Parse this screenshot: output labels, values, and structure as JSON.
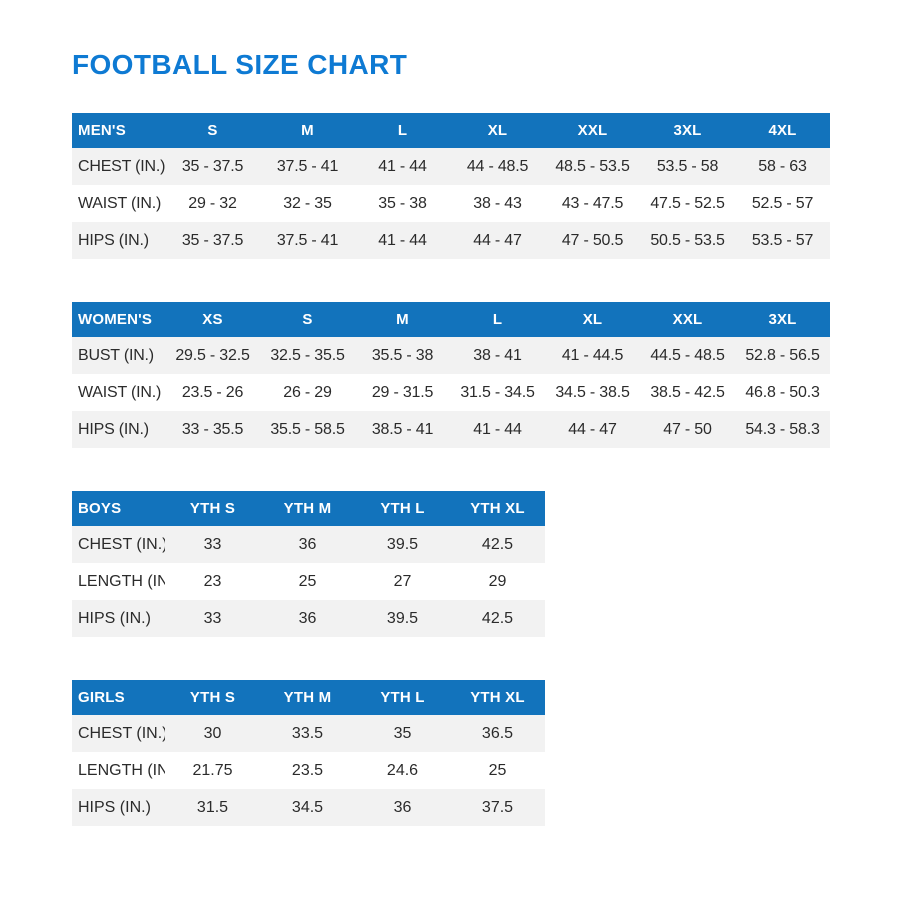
{
  "page": {
    "title": "FOOTBALL SIZE CHART"
  },
  "colors": {
    "title_blue": "#0e7ad3",
    "header_blue": "#1273bc",
    "row_stripe_gray": "#f2f2f2",
    "text": "#2b2b2b"
  },
  "tables": [
    {
      "name": "mens",
      "header": [
        "MEN'S",
        "S",
        "M",
        "L",
        "XL",
        "XXL",
        "3XL",
        "4XL"
      ],
      "rows": [
        [
          "CHEST (IN.)",
          "35 - 37.5",
          "37.5 - 41",
          "41 - 44",
          "44 - 48.5",
          "48.5 - 53.5",
          "53.5 - 58",
          "58 - 63"
        ],
        [
          "WAIST (IN.)",
          "29 - 32",
          "32 - 35",
          "35 - 38",
          "38 - 43",
          "43 - 47.5",
          "47.5 - 52.5",
          "52.5 - 57"
        ],
        [
          "HIPS (IN.)",
          "35 - 37.5",
          "37.5 - 41",
          "41 - 44",
          "44 - 47",
          "47 - 50.5",
          "50.5 - 53.5",
          "53.5 - 57"
        ]
      ]
    },
    {
      "name": "womens",
      "header": [
        "WOMEN'S",
        "XS",
        "S",
        "M",
        "L",
        "XL",
        "XXL",
        "3XL"
      ],
      "rows": [
        [
          "BUST (IN.)",
          "29.5 - 32.5",
          "32.5 - 35.5",
          "35.5 - 38",
          "38 - 41",
          "41 - 44.5",
          "44.5 - 48.5",
          "52.8 - 56.5"
        ],
        [
          "WAIST (IN.)",
          "23.5 - 26",
          "26 - 29",
          "29 - 31.5",
          "31.5 - 34.5",
          "34.5 - 38.5",
          "38.5 - 42.5",
          "46.8 - 50.3"
        ],
        [
          "HIPS (IN.)",
          "33 - 35.5",
          "35.5 - 58.5",
          "38.5 - 41",
          "41 - 44",
          "44 - 47",
          "47 - 50",
          "54.3 - 58.3"
        ]
      ]
    },
    {
      "name": "boys",
      "header": [
        "BOYS",
        "YTH S",
        "YTH M",
        "YTH L",
        "YTH XL"
      ],
      "rows": [
        [
          "CHEST (IN.)",
          "33",
          "36",
          "39.5",
          "42.5"
        ],
        [
          "LENGTH (IN.)",
          "23",
          "25",
          "27",
          "29"
        ],
        [
          "HIPS (IN.)",
          "33",
          "36",
          "39.5",
          "42.5"
        ]
      ]
    },
    {
      "name": "girls",
      "header": [
        "GIRLS",
        "YTH S",
        "YTH M",
        "YTH L",
        "YTH XL"
      ],
      "rows": [
        [
          "CHEST (IN.)",
          "30",
          "33.5",
          "35",
          "36.5"
        ],
        [
          "LENGTH (IN.)",
          "21.75",
          "23.5",
          "24.6",
          "25"
        ],
        [
          "HIPS (IN.)",
          "31.5",
          "34.5",
          "36",
          "37.5"
        ]
      ]
    }
  ]
}
